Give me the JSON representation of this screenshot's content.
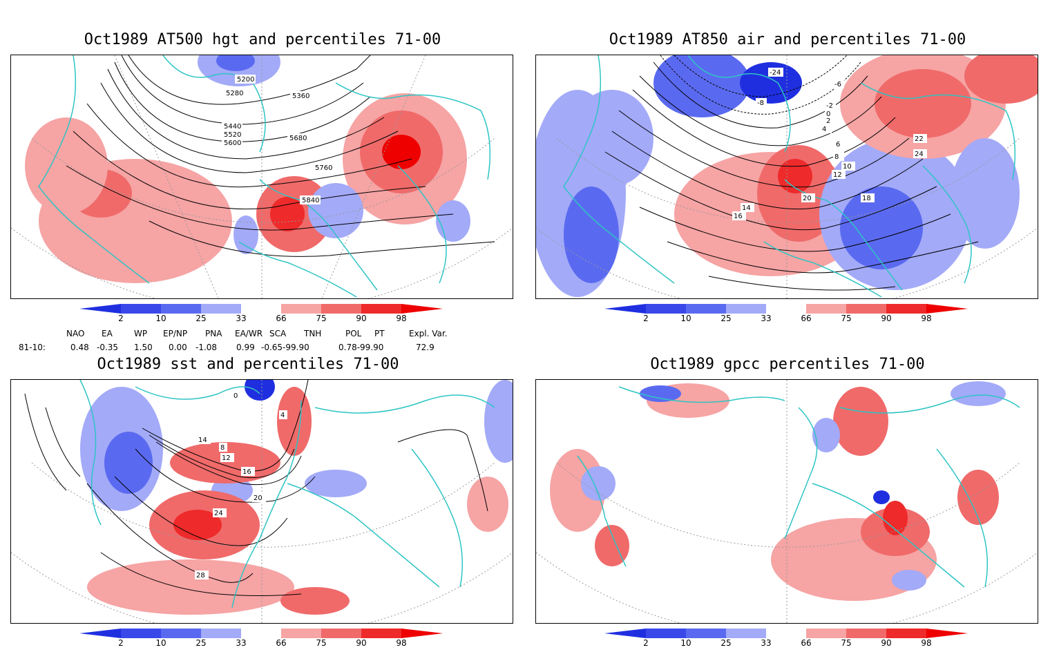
{
  "colors": {
    "frame": "#000000",
    "coast": "#2ec4c4",
    "blue_dark": "#1f2fe0",
    "blue_mid": "#5a6af0",
    "blue_light": "#a3aaf8",
    "red_light": "#f6a4a4",
    "red_mid": "#f06a6a",
    "red_dark": "#ee2a2a",
    "red_darkest": "#ee0000"
  },
  "colorbar": {
    "ticks": [
      "2",
      "10",
      "25",
      "33",
      "66",
      "75",
      "90",
      "98"
    ]
  },
  "chart_data": [
    {
      "type": "heatmap",
      "id": "z500",
      "title": "Oct1989 AT500 hgt and percentiles 71-00",
      "field": "500 hPa geopotential height (contours) and percentile shading",
      "contour_labels": [
        "5200",
        "5280",
        "5360",
        "5440",
        "5520",
        "5600",
        "5680",
        "5760",
        "5840"
      ],
      "percentile_bins": [
        2,
        10,
        25,
        33,
        66,
        75,
        90,
        98
      ]
    },
    {
      "type": "heatmap",
      "id": "t850",
      "title": "Oct1989 AT850 air and percentiles 71-00",
      "field": "850 hPa air temperature (contours) and percentile shading",
      "contour_labels": [
        "-24",
        "-8",
        "-6",
        "-2",
        "0",
        "2",
        "4",
        "6",
        "8",
        "10",
        "12",
        "14",
        "16",
        "18",
        "20",
        "22",
        "24"
      ],
      "percentile_bins": [
        2,
        10,
        25,
        33,
        66,
        75,
        90,
        98
      ]
    },
    {
      "type": "heatmap",
      "id": "sst",
      "title": "Oct1989 sst and percentiles 71-00",
      "field": "sea surface temperature (contours) and percentile shading",
      "contour_labels": [
        "0",
        "4",
        "8",
        "12",
        "14",
        "16",
        "20",
        "24",
        "28"
      ],
      "percentile_bins": [
        2,
        10,
        25,
        33,
        66,
        75,
        90,
        98
      ]
    },
    {
      "type": "heatmap",
      "id": "gpcc",
      "title": "Oct1989 gpcc percentiles 71-00",
      "field": "precipitation percentile shading",
      "contour_labels": [],
      "percentile_bins": [
        2,
        10,
        25,
        33,
        66,
        75,
        90,
        98
      ]
    }
  ],
  "teleconnections": {
    "headers": [
      "NAO",
      "EA",
      "WP",
      "EP/NP",
      "PNA",
      "EA/WR",
      "SCA",
      "TNH",
      "POL",
      "PT",
      "Expl. Var."
    ],
    "row_label": "81-10:",
    "values": [
      "0.48",
      "-0.35",
      "1.50",
      "0.00",
      "-1.08",
      "0.99",
      "-0.65-99.90",
      "0.78-99.90",
      "72.9"
    ]
  }
}
